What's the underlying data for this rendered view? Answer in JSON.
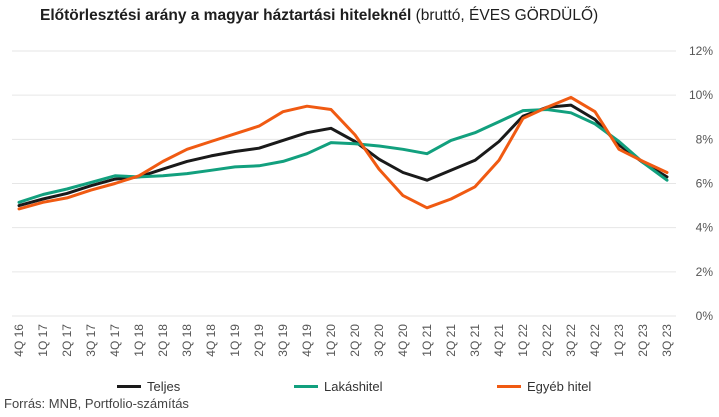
{
  "title": {
    "bold": "Előtörlesztési arány a magyar háztartási hiteleknél",
    "normal": " (bruttó, ÉVES GÖRDÜLŐ)"
  },
  "source": "Forrás: MNB, Portfolio-számítás",
  "chart_data": {
    "type": "line",
    "title": "Előtörlesztési arány a magyar háztartási hiteleknél (bruttó, ÉVES GÖRDÜLŐ)",
    "categories": [
      "4Q 16",
      "1Q 17",
      "2Q 17",
      "3Q 17",
      "4Q 17",
      "1Q 18",
      "2Q 18",
      "3Q 18",
      "4Q 18",
      "1Q 19",
      "2Q 19",
      "3Q 19",
      "4Q 19",
      "1Q 20",
      "2Q 20",
      "3Q 20",
      "4Q 20",
      "1Q 21",
      "2Q 21",
      "3Q 21",
      "4Q 21",
      "1Q 22",
      "2Q 22",
      "3Q 22",
      "4Q 22",
      "1Q 23",
      "2Q 23",
      "3Q 23"
    ],
    "y_axis": {
      "min": 0,
      "max": 12,
      "ticks": [
        "0%",
        "2%",
        "4%",
        "6%",
        "8%",
        "10%",
        "12%"
      ],
      "position": "right",
      "grid": true
    },
    "series": [
      {
        "name": "Teljes",
        "color": "#1a1a1a",
        "values": [
          5.0,
          5.3,
          5.55,
          5.9,
          6.2,
          6.3,
          6.65,
          7.0,
          7.25,
          7.45,
          7.6,
          7.95,
          8.3,
          8.5,
          7.9,
          7.1,
          6.5,
          6.15,
          6.6,
          7.05,
          7.9,
          9.05,
          9.45,
          9.55,
          8.9,
          7.75,
          6.95,
          6.3
        ]
      },
      {
        "name": "Lakáshitel",
        "color": "#12a07e",
        "values": [
          5.15,
          5.5,
          5.75,
          6.05,
          6.35,
          6.3,
          6.35,
          6.45,
          6.6,
          6.75,
          6.8,
          7.0,
          7.35,
          7.85,
          7.8,
          7.7,
          7.55,
          7.35,
          7.95,
          8.3,
          8.8,
          9.3,
          9.35,
          9.2,
          8.7,
          7.9,
          6.95,
          6.15
        ]
      },
      {
        "name": "Egyéb hitel",
        "color": "#f05a12",
        "values": [
          4.85,
          5.15,
          5.35,
          5.7,
          6.0,
          6.35,
          7.0,
          7.55,
          7.9,
          8.25,
          8.6,
          9.25,
          9.5,
          9.35,
          8.2,
          6.65,
          5.45,
          4.9,
          5.3,
          5.85,
          7.05,
          8.95,
          9.45,
          9.9,
          9.25,
          7.55,
          7.0,
          6.5
        ]
      }
    ],
    "legend_position": "bottom"
  }
}
